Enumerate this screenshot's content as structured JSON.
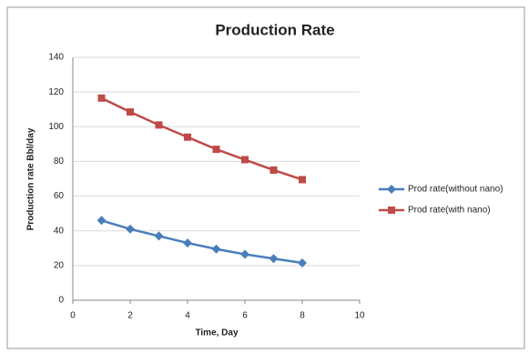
{
  "chart_data": {
    "type": "line",
    "title": "Production Rate",
    "x_label": "Time, Day",
    "y_label": "Production rate Bbl/day",
    "x": [
      1,
      2,
      3,
      4,
      5,
      6,
      7,
      8
    ],
    "series": [
      {
        "name": "Prod rate(without nano)",
        "color": "#4a7ebb",
        "marker": "diamond",
        "values": [
          46,
          41,
          37,
          33,
          29.5,
          26.5,
          24,
          21.5
        ]
      },
      {
        "name": "Prod rate(with nano)",
        "color": "#be4b48",
        "marker": "square",
        "values": [
          116.5,
          108.5,
          101,
          94,
          87,
          81,
          75,
          69.5
        ]
      }
    ],
    "xlim": [
      0,
      10
    ],
    "xticks": [
      0,
      2,
      4,
      6,
      8,
      10
    ],
    "ylim": [
      0,
      140
    ],
    "yticks": [
      0,
      20,
      40,
      60,
      80,
      100,
      120,
      140
    ],
    "grid": true,
    "legend": "right"
  }
}
